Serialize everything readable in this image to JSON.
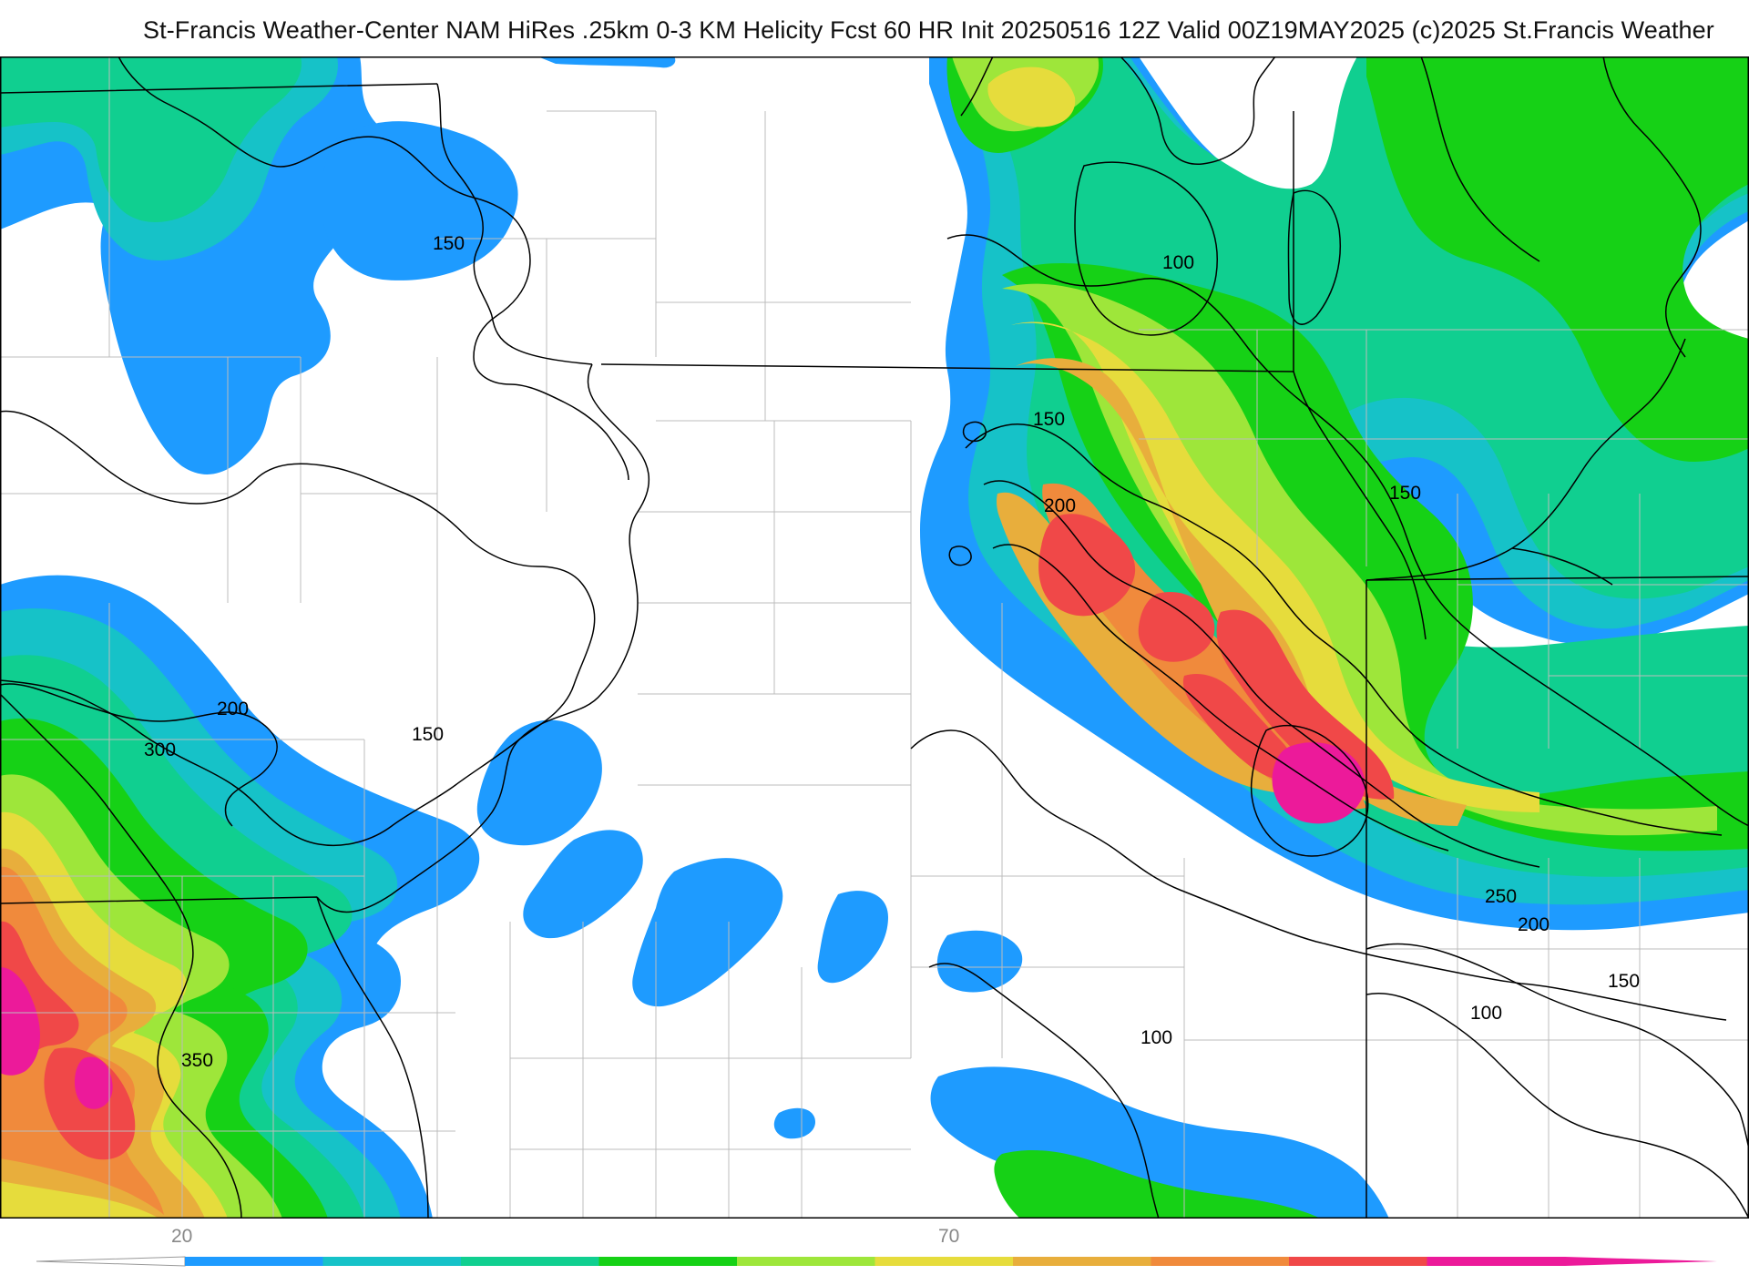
{
  "title": "St-Francis Weather-Center NAM HiRes .25km 0-3 KM Helicity Fcst 60 HR Init 20250516 12Z  Valid 00Z19MAY2025    (c)2025 St.Francis Weather",
  "colors": {
    "c20": "#1e9bff",
    "c30": "#16c2c8",
    "c40": "#10cf90",
    "c50": "#16d116",
    "c60": "#9ee63a",
    "c70": "#e6dc3c",
    "c80": "#e8ae3c",
    "c90": "#f08a3c",
    "c100": "#f04848",
    "c110": "#ec1a9a",
    "border": "#000000",
    "county": "#bcbcbc"
  },
  "contour_labels": [
    {
      "text": "150"
    },
    {
      "text": "100"
    },
    {
      "text": "150"
    },
    {
      "text": "200"
    },
    {
      "text": "150"
    },
    {
      "text": "200"
    },
    {
      "text": "300"
    },
    {
      "text": "150"
    },
    {
      "text": "250"
    },
    {
      "text": "200"
    },
    {
      "text": "150"
    },
    {
      "text": "100"
    },
    {
      "text": "100"
    },
    {
      "text": "350"
    }
  ],
  "colorbar": {
    "labels": [
      "20",
      "70"
    ],
    "colors": [
      "#1e9bff",
      "#16c2c8",
      "#10cf90",
      "#16d116",
      "#9ee63a",
      "#e6dc3c",
      "#e8ae3c",
      "#f08a3c",
      "#f04848",
      "#ec1a9a"
    ]
  }
}
